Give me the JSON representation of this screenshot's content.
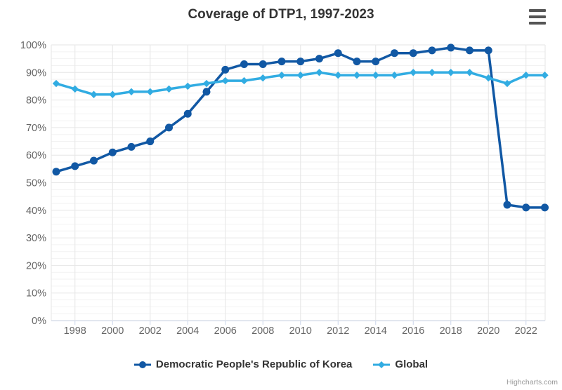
{
  "header": {
    "title": "Coverage of DTP1, 1997-2023"
  },
  "context_menu": {
    "icon": "hamburger-icon"
  },
  "chart_data": {
    "type": "line",
    "title": "Coverage of DTP1, 1997-2023",
    "xlabel": "",
    "ylabel": "",
    "x": [
      1997,
      1998,
      1999,
      2000,
      2001,
      2002,
      2003,
      2004,
      2005,
      2006,
      2007,
      2008,
      2009,
      2010,
      2011,
      2012,
      2013,
      2014,
      2015,
      2016,
      2017,
      2018,
      2019,
      2020,
      2021,
      2022,
      2023
    ],
    "series": [
      {
        "name": "Democratic People's Republic of Korea",
        "color": "#1158A4",
        "marker": "circle",
        "values": [
          54,
          56,
          58,
          61,
          63,
          65,
          70,
          75,
          83,
          91,
          93,
          93,
          94,
          94,
          95,
          97,
          94,
          94,
          97,
          97,
          98,
          99,
          98,
          98,
          42,
          41,
          41
        ]
      },
      {
        "name": "Global",
        "color": "#31ACE2",
        "marker": "diamond",
        "values": [
          86,
          84,
          82,
          82,
          83,
          83,
          84,
          85,
          86,
          87,
          87,
          88,
          89,
          89,
          90,
          89,
          89,
          89,
          89,
          90,
          90,
          90,
          90,
          88,
          86,
          89,
          89
        ]
      }
    ],
    "ylim": [
      0,
      100
    ],
    "y_tick_interval": 10,
    "y_minor_tick_interval": 2.5,
    "y_tick_suffix": "%",
    "x_tick_labels": [
      1998,
      2000,
      2002,
      2004,
      2006,
      2008,
      2010,
      2012,
      2014,
      2016,
      2018,
      2020,
      2022
    ],
    "grid": true,
    "legend_position": "bottom"
  },
  "credits": {
    "text": "Highcharts.com"
  },
  "colors": {
    "title_text": "#333333",
    "axis_label": "#666666",
    "grid_major": "#e6e6e6",
    "grid_minor": "#f2f2f2",
    "axis_line": "#ccd6eb"
  }
}
